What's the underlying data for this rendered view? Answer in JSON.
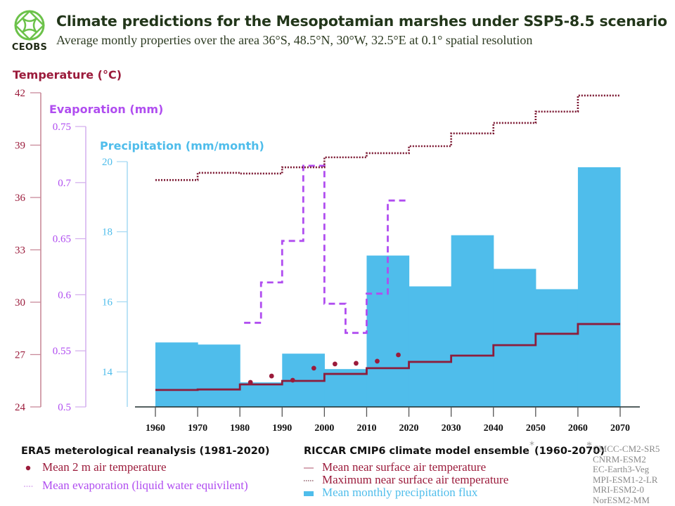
{
  "header": {
    "logo_text": "CEOBS",
    "title": "Climate predictions for the Mesopotamian marshes under SSP5-8.5 scenario",
    "subtitle": "Average montly properties over the area 36°S, 48.5°N, 30°W, 32.5°E at 0.1° spatial resolution"
  },
  "colors": {
    "temperature": "#9b1b3b",
    "temperature_axis": "#c98a9a",
    "evaporation": "#b04df0",
    "evaporation_axis": "#d6b2ee",
    "precipitation": "#4fbdeb",
    "precipitation_axis": "#aadcf3",
    "logo": "#6cc24a",
    "title": "#22361a"
  },
  "legend": {
    "era5": {
      "heading": "ERA5 meterological reanalysis (1981-2020)",
      "items": [
        {
          "label": "Mean 2 m air temperature",
          "marker": "dot"
        },
        {
          "label": "Mean evaporation (liquid water equivilent)",
          "marker": "dashed-line"
        }
      ]
    },
    "riccar": {
      "heading": "RICCAR CMIP6 climate model ensemble",
      "heading_asterisk": "*",
      "heading_range": "(1960-2070)",
      "items": [
        {
          "label": "Mean near surface air temperature",
          "marker": "solid-line"
        },
        {
          "label": "Maximum near surface air temperature",
          "marker": "dotted-line"
        },
        {
          "label": "Mean monthly precipitation flux",
          "marker": "bar"
        }
      ]
    },
    "models_asterisk": "*",
    "models": [
      "CMCC-CM2-SR5",
      "CNRM-ESM2",
      "EC-Earth3-Veg",
      "MPI-ESM1-2-LR",
      "MRI-ESM2-0",
      "NorESM2-MM"
    ]
  },
  "chart_data": {
    "type": "bar",
    "title": "Climate predictions for the Mesopotamian marshes under SSP5-8.5 scenario",
    "xlabel": "",
    "x_ticks": [
      "1960",
      "1970",
      "1980",
      "1990",
      "2000",
      "2010",
      "2020",
      "2030",
      "2040",
      "2050",
      "2060",
      "2070"
    ],
    "xlim": [
      1960,
      2070
    ],
    "axes": {
      "temperature": {
        "label": "Temperature (°C)",
        "ylim": [
          24,
          42
        ],
        "ticks": [
          "42",
          "39",
          "36",
          "33",
          "30",
          "27",
          "24"
        ],
        "tick_values": [
          42,
          39,
          36,
          33,
          30,
          27,
          24
        ]
      },
      "evaporation": {
        "label": "Evaporation (mm)",
        "ylim": [
          0.5,
          0.75
        ],
        "ticks": [
          "0.75",
          "0.7",
          "0.65",
          "0.6",
          "0.55",
          "0.5"
        ],
        "tick_values": [
          0.75,
          0.7,
          0.65,
          0.6,
          0.55,
          0.5
        ]
      },
      "precipitation": {
        "label": "Precipitation (mm/month)",
        "ylim": [
          13,
          20
        ],
        "ticks": [
          "20",
          "18",
          "16",
          "14"
        ],
        "tick_values": [
          20,
          18,
          16,
          14
        ]
      }
    },
    "grid": false,
    "series": [
      {
        "name": "Mean monthly precipitation flux",
        "type": "bar",
        "axis": "precipitation",
        "decades": [
          1960,
          1970,
          1980,
          1990,
          2000,
          2010,
          2020,
          2030,
          2040,
          2050,
          2060
        ],
        "values": [
          14.84,
          14.78,
          13.7,
          14.52,
          14.08,
          17.32,
          16.44,
          17.9,
          16.94,
          16.36,
          19.84
        ]
      },
      {
        "name": "Mean near surface air temperature",
        "type": "step",
        "axis": "temperature",
        "decades": [
          1960,
          1970,
          1980,
          1990,
          2000,
          2010,
          2020,
          2030,
          2040,
          2050,
          2060
        ],
        "values": [
          24.97,
          25.0,
          25.29,
          25.49,
          25.89,
          26.22,
          26.58,
          26.94,
          27.54,
          28.19,
          28.75
        ]
      },
      {
        "name": "Maximum near surface air temperature",
        "type": "step",
        "axis": "temperature",
        "decades": [
          1960,
          1970,
          1980,
          1990,
          2000,
          2010,
          2020,
          2030,
          2040,
          2050,
          2060
        ],
        "values": [
          37.0,
          37.41,
          37.37,
          37.73,
          38.3,
          38.54,
          38.94,
          39.67,
          40.27,
          40.92,
          41.84
        ]
      },
      {
        "name": "Mean 2 m air temperature",
        "type": "scatter",
        "axis": "temperature",
        "x": [
          1982.5,
          1987.5,
          1992.5,
          1997.5,
          2002.5,
          2007.5,
          2012.5,
          2017.5
        ],
        "values": [
          25.41,
          25.77,
          25.53,
          26.22,
          26.46,
          26.5,
          26.62,
          26.98
        ]
      },
      {
        "name": "Mean evaporation (liquid water equivilent)",
        "type": "step",
        "axis": "evaporation",
        "periods": [
          1981,
          1985,
          1990,
          1995,
          2000,
          2005,
          2010,
          2015
        ],
        "period_end": 2020,
        "values": [
          0.575,
          0.611,
          0.648,
          0.715,
          0.592,
          0.566,
          0.601,
          0.684
        ]
      }
    ]
  }
}
